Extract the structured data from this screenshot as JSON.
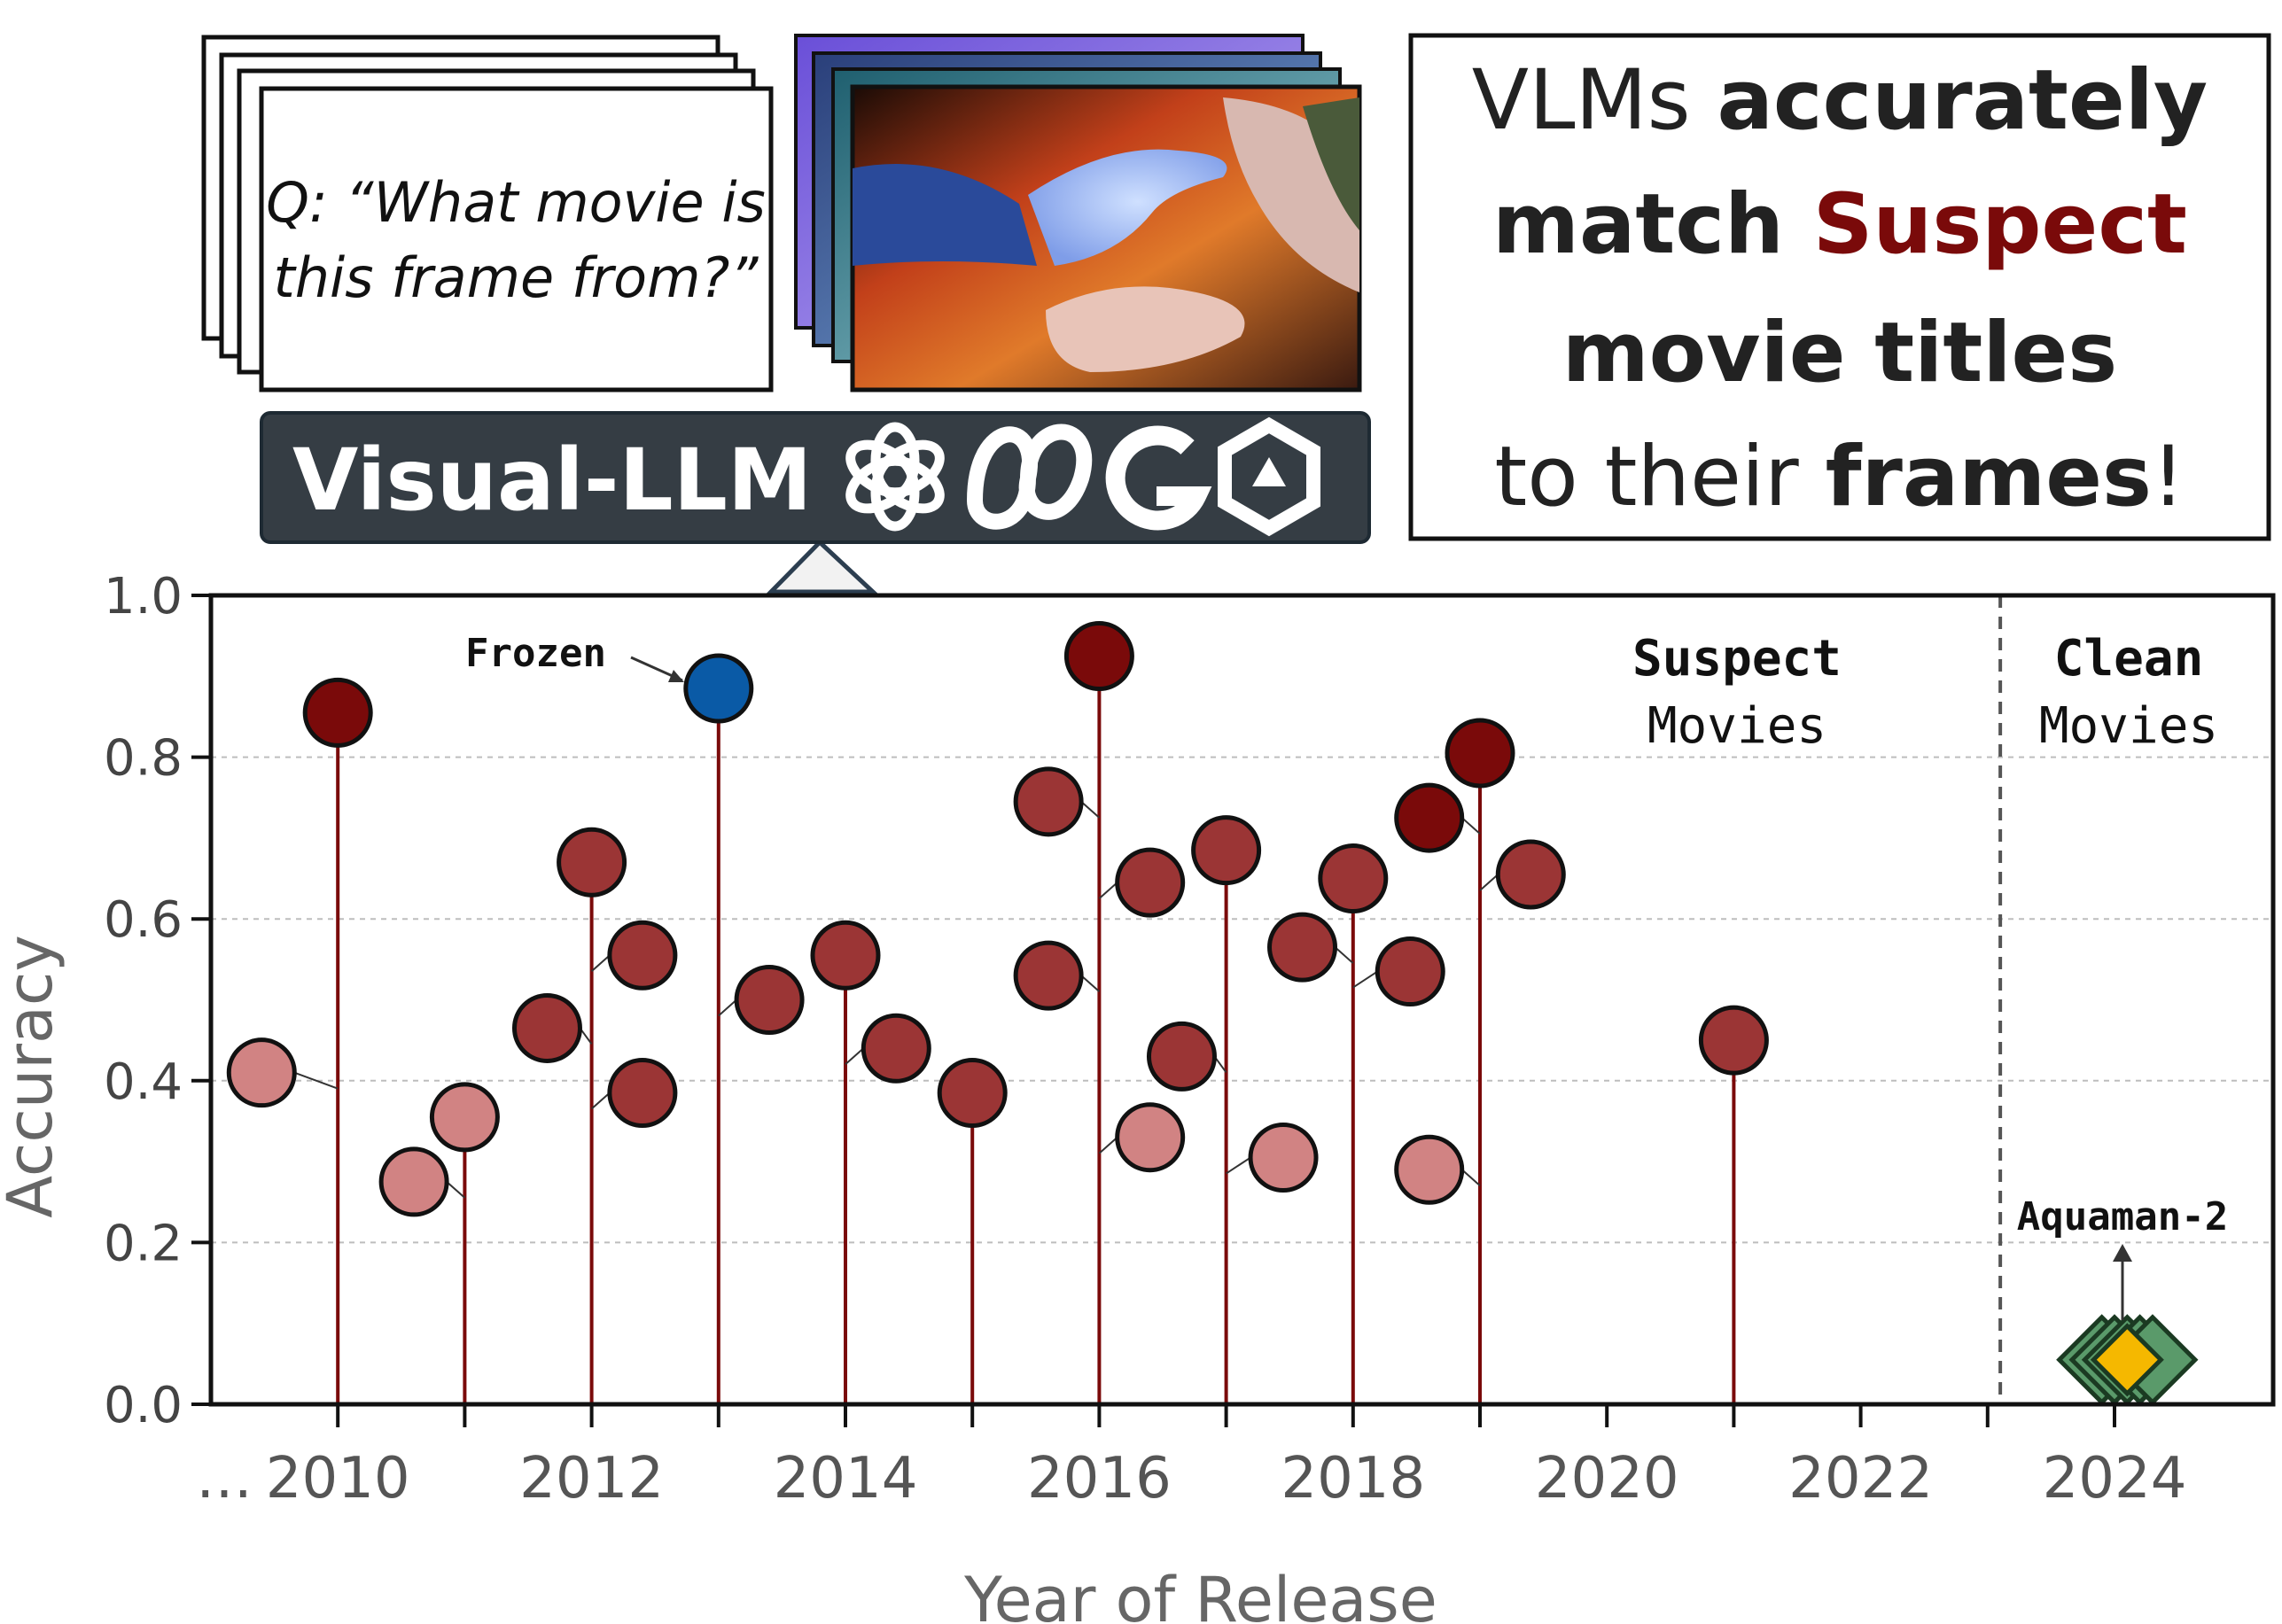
{
  "prompt_card": {
    "line1": "Q: “What movie is",
    "line2": "this frame from?”"
  },
  "banner": {
    "label": "Visual-LLM",
    "icons": [
      "openai-logo-icon",
      "meta-logo-icon",
      "google-logo-icon",
      "qwen-logo-icon"
    ]
  },
  "claim": {
    "line1_pre": "VLMs ",
    "line1_bold": "accurately",
    "line2_bold": "match ",
    "line2_red": "Suspect",
    "line3_bold": "movie titles",
    "line4_pre": "to their ",
    "line4_bold": "frames",
    "line4_post": "!"
  },
  "colors": {
    "suspect_dark": "#7a0a0a",
    "suspect_mid": "#9b3535",
    "suspect_light": "#d18383",
    "frozen": "#0a5aa6",
    "clean_green": "#5a9a6a",
    "clean_yellow": "#f5b800",
    "stem": "#7a0a0a"
  },
  "chart_data": {
    "type": "scatter",
    "xlabel": "Year of Release",
    "ylabel": "Accuracy",
    "xlim": [
      2009,
      2025.25
    ],
    "ylim": [
      0,
      1
    ],
    "x_ticks": [
      2010,
      2012,
      2014,
      2016,
      2018,
      2020,
      2022,
      2024
    ],
    "x_prefix": "…",
    "y_ticks": [
      "0.0",
      "0.2",
      "0.4",
      "0.6",
      "0.8",
      "1.0"
    ],
    "y_tick_values": [
      0,
      0.2,
      0.4,
      0.6,
      0.8,
      1.0
    ],
    "grid": "horizontal dashed",
    "divider_x": 2023.1,
    "regions": {
      "suspect_bold": "Suspect",
      "suspect_norm": "Movies",
      "clean_bold": "Clean",
      "clean_norm": "Movies"
    },
    "stems": [
      {
        "x": 2010,
        "y": 0.855
      },
      {
        "x": 2011,
        "y": 0.355
      },
      {
        "x": 2012,
        "y": 0.67
      },
      {
        "x": 2013,
        "y": 0.885
      },
      {
        "x": 2014,
        "y": 0.555
      },
      {
        "x": 2015,
        "y": 0.385
      },
      {
        "x": 2016,
        "y": 0.925
      },
      {
        "x": 2017,
        "y": 0.685
      },
      {
        "x": 2018,
        "y": 0.65
      },
      {
        "x": 2019,
        "y": 0.805
      },
      {
        "x": 2021,
        "y": 0.45
      }
    ],
    "suspect_points": [
      {
        "x": 2009.4,
        "y": 0.41,
        "shade": "light",
        "link_x": 2010
      },
      {
        "x": 2010,
        "y": 0.855,
        "shade": "dark",
        "link_x": null
      },
      {
        "x": 2010.6,
        "y": 0.275,
        "shade": "light",
        "link_x": 2011
      },
      {
        "x": 2011,
        "y": 0.355,
        "shade": "light",
        "link_x": null
      },
      {
        "x": 2011.65,
        "y": 0.465,
        "shade": "mid",
        "link_x": 2012
      },
      {
        "x": 2012,
        "y": 0.67,
        "shade": "mid",
        "link_x": null
      },
      {
        "x": 2012.4,
        "y": 0.555,
        "shade": "mid",
        "link_x": 2012
      },
      {
        "x": 2012.4,
        "y": 0.385,
        "shade": "mid",
        "link_x": 2012
      },
      {
        "x": 2013.4,
        "y": 0.5,
        "shade": "mid",
        "link_x": 2013
      },
      {
        "x": 2014,
        "y": 0.555,
        "shade": "mid",
        "link_x": null
      },
      {
        "x": 2014.4,
        "y": 0.44,
        "shade": "mid",
        "link_x": 2014
      },
      {
        "x": 2015,
        "y": 0.385,
        "shade": "mid",
        "link_x": null
      },
      {
        "x": 2015.6,
        "y": 0.745,
        "shade": "mid",
        "link_x": 2016
      },
      {
        "x": 2015.6,
        "y": 0.53,
        "shade": "mid",
        "link_x": 2016
      },
      {
        "x": 2016,
        "y": 0.925,
        "shade": "dark",
        "link_x": null
      },
      {
        "x": 2016.4,
        "y": 0.645,
        "shade": "mid",
        "link_x": 2016
      },
      {
        "x": 2016.4,
        "y": 0.33,
        "shade": "light",
        "link_x": 2016
      },
      {
        "x": 2016.65,
        "y": 0.43,
        "shade": "mid",
        "link_x": 2017
      },
      {
        "x": 2017,
        "y": 0.685,
        "shade": "mid",
        "link_x": null
      },
      {
        "x": 2017.45,
        "y": 0.305,
        "shade": "light",
        "link_x": 2017
      },
      {
        "x": 2017.6,
        "y": 0.565,
        "shade": "mid",
        "link_x": 2018
      },
      {
        "x": 2018,
        "y": 0.65,
        "shade": "mid",
        "link_x": null
      },
      {
        "x": 2018.45,
        "y": 0.535,
        "shade": "mid",
        "link_x": 2018
      },
      {
        "x": 2018.6,
        "y": 0.725,
        "shade": "dark",
        "link_x": 2019
      },
      {
        "x": 2018.6,
        "y": 0.29,
        "shade": "light",
        "link_x": 2019
      },
      {
        "x": 2019,
        "y": 0.805,
        "shade": "dark",
        "link_x": null
      },
      {
        "x": 2019.4,
        "y": 0.655,
        "shade": "mid",
        "link_x": 2019
      },
      {
        "x": 2021,
        "y": 0.45,
        "shade": "mid",
        "link_x": null
      }
    ],
    "highlight_point": {
      "x": 2013,
      "y": 0.885,
      "label": "Frozen"
    },
    "clean_points": [
      {
        "x": 2023.9,
        "y": 0.055
      },
      {
        "x": 2024.0,
        "y": 0.055
      },
      {
        "x": 2024.1,
        "y": 0.055
      },
      {
        "x": 2024.2,
        "y": 0.055
      },
      {
        "x": 2024.3,
        "y": 0.055
      }
    ],
    "clean_highlight": {
      "x": 2024.1,
      "y": 0.055,
      "label": "Aquaman-2"
    }
  }
}
